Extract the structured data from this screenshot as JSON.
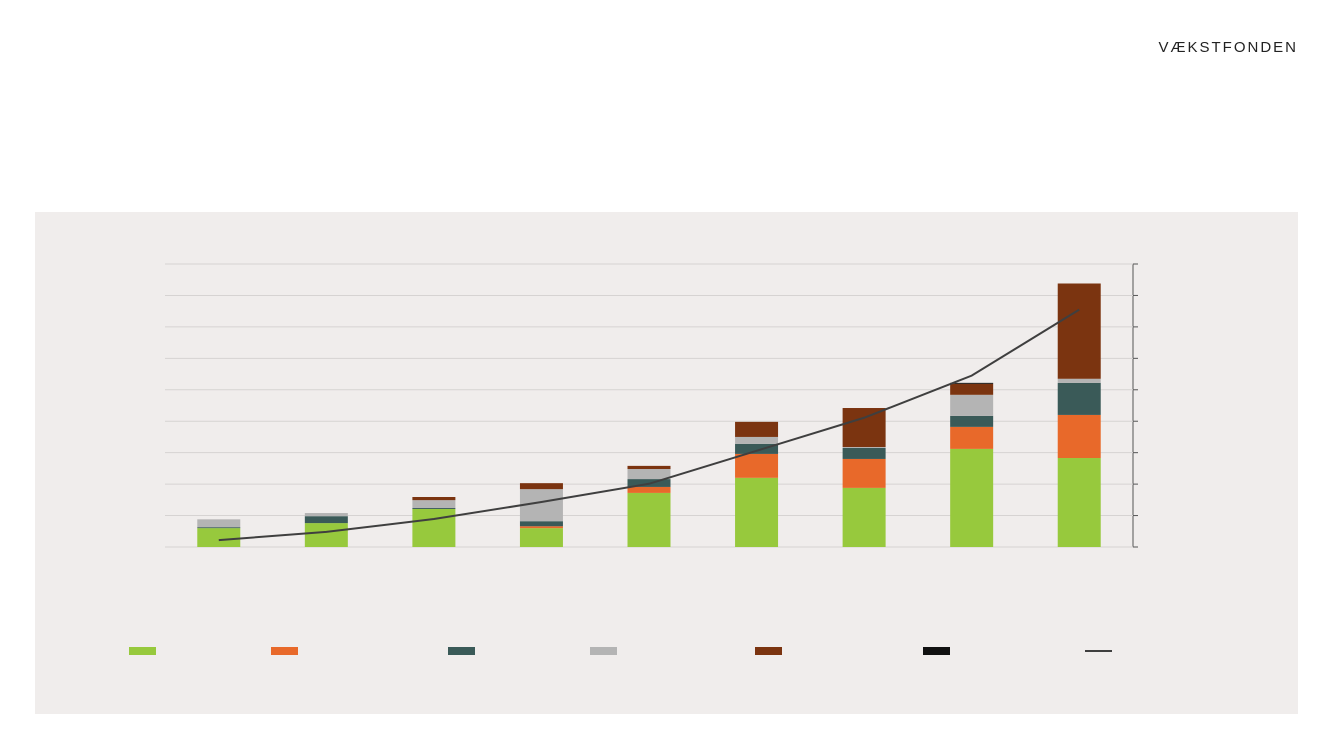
{
  "logo": "VÆKSTFONDEN",
  "chart_data": {
    "type": "bar",
    "stacked": true,
    "categories": [
      null,
      null,
      null,
      null,
      null,
      null,
      null,
      null,
      null
    ],
    "ylim": [
      0,
      9
    ],
    "yticks": [
      0,
      1,
      2,
      3,
      4,
      5,
      6,
      7,
      8,
      9
    ],
    "y2lim": [
      0,
      9
    ],
    "y2ticks": [
      0,
      1,
      2,
      3,
      4,
      5,
      6,
      7,
      8,
      9
    ],
    "grid": true,
    "series": [
      {
        "color": "#97c93d",
        "values": [
          0.6,
          0.76,
          1.21,
          0.6,
          1.72,
          2.2,
          1.88,
          3.12,
          2.83
        ]
      },
      {
        "color": "#e8692a",
        "values": [
          0,
          0,
          0,
          0.06,
          0.19,
          0.76,
          0.92,
          0.7,
          1.37
        ]
      },
      {
        "color": "#3a5a58",
        "values": [
          0.03,
          0.22,
          0.03,
          0.16,
          0.25,
          0.32,
          0.35,
          0.35,
          1.02
        ]
      },
      {
        "color": "#b4b4b4",
        "values": [
          0.25,
          0.1,
          0.25,
          1.02,
          0.32,
          0.22,
          0.03,
          0.67,
          0.13
        ]
      },
      {
        "color": "#7b3410",
        "values": [
          0,
          0,
          0.1,
          0.19,
          0.1,
          0.48,
          1.24,
          0.35,
          3.03
        ]
      },
      {
        "color": "#111111",
        "values": [
          0,
          0,
          0,
          0,
          0,
          0,
          0,
          0.03,
          0
        ]
      },
      {
        "type": "line",
        "axis": "y2",
        "color": "#3f3f3f",
        "values": [
          0.22,
          0.48,
          0.89,
          1.43,
          2.01,
          3.06,
          4.11,
          5.45,
          7.55
        ]
      }
    ]
  }
}
